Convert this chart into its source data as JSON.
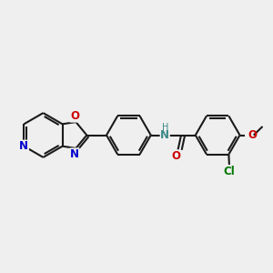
{
  "bg_color": "#efefef",
  "bond_color": "#1a1a1a",
  "bond_width": 1.5,
  "atom_colors": {
    "O": "#cc0000",
    "N": "#0000cc",
    "N_teal": "#3a8888",
    "Cl": "#007700",
    "H": "#3a8888"
  },
  "font_size": 8.5,
  "figsize": [
    3.0,
    3.0
  ],
  "dpi": 100,
  "xlim": [
    0,
    10
  ],
  "ylim": [
    2,
    8
  ]
}
